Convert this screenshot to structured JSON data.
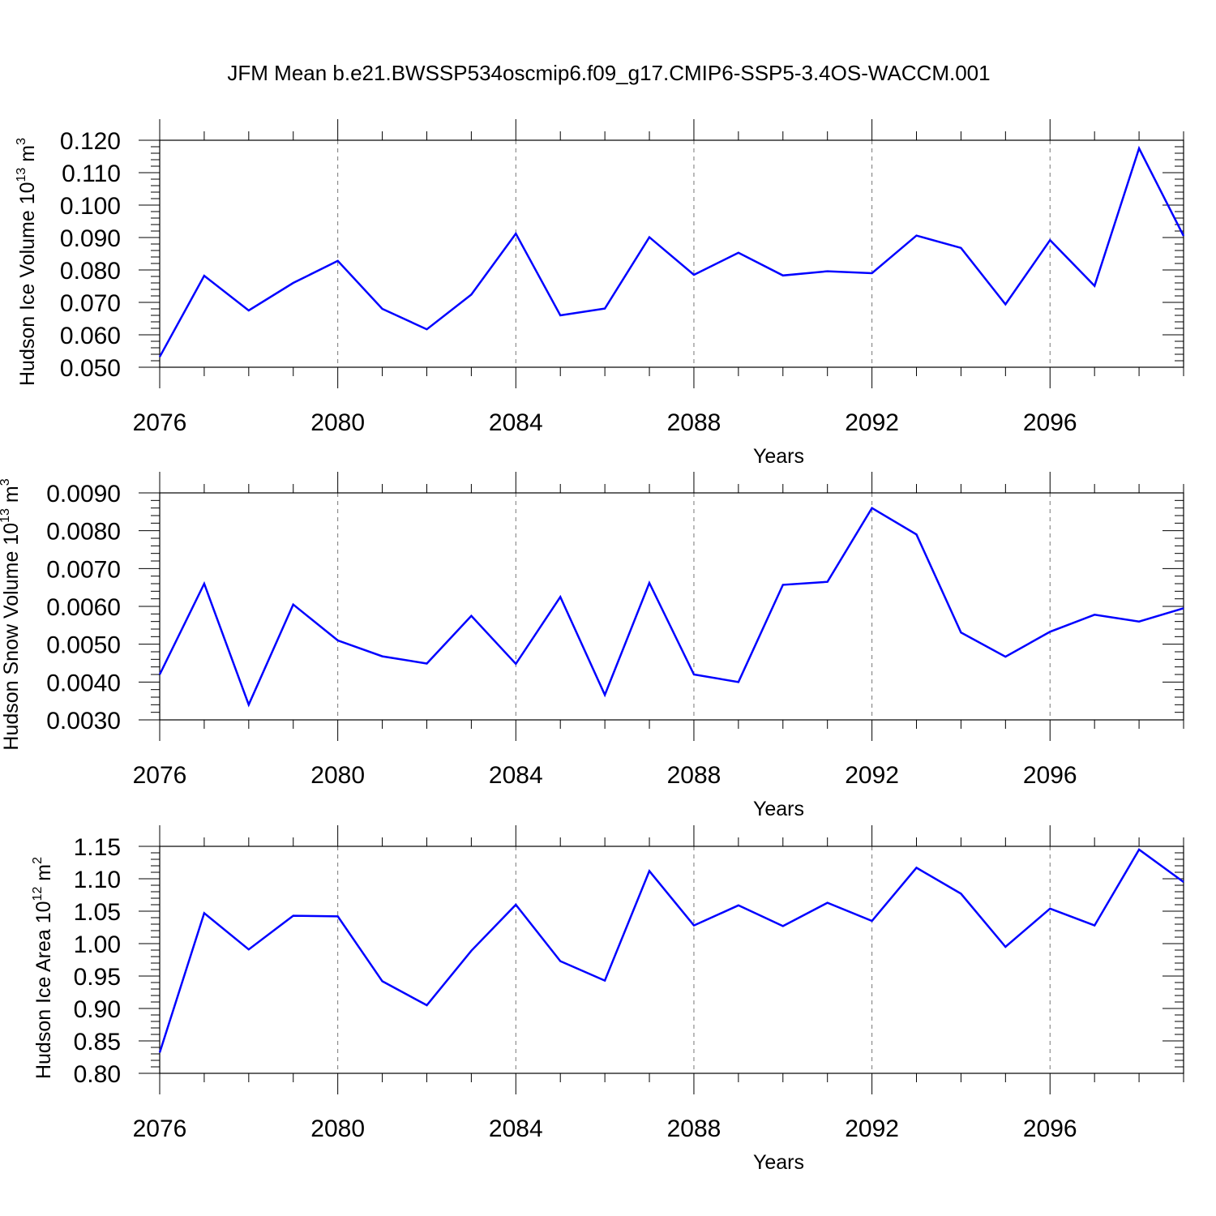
{
  "title": "JFM Mean b.e21.BWSSP534oscmip6.f09_g17.CMIP6-SSP5-3.4OS-WACCM.001",
  "line_color": "#0000ff",
  "chart_data": [
    {
      "type": "line",
      "title": "JFM Mean b.e21.BWSSP534oscmip6.f09_g17.CMIP6-SSP5-3.4OS-WACCM.001",
      "xlabel": "Years",
      "ylabel": {
        "base": "Hudson Ice Volume 10",
        "exp": "13",
        "unit": " m",
        "unit_exp": "3"
      },
      "xlim": [
        2076,
        2099
      ],
      "ylim": [
        0.05,
        0.12
      ],
      "x_ticks": [
        2076,
        2080,
        2084,
        2088,
        2092,
        2096
      ],
      "x_tick_labels": [
        "2076",
        "2080",
        "2084",
        "2088",
        "2092",
        "2096"
      ],
      "y_ticks": [
        0.05,
        0.06,
        0.07,
        0.08,
        0.09,
        0.1,
        0.11,
        0.12
      ],
      "y_tick_labels": [
        "0.050",
        "0.060",
        "0.070",
        "0.080",
        "0.090",
        "0.100",
        "0.110",
        "0.120"
      ],
      "y_minor_step": 0.002,
      "grid": "vertical dashed at major x ticks",
      "series": [
        {
          "name": "Hudson Ice Volume",
          "x": [
            2076,
            2077,
            2078,
            2079,
            2080,
            2081,
            2082,
            2083,
            2084,
            2085,
            2086,
            2087,
            2088,
            2089,
            2090,
            2091,
            2092,
            2093,
            2094,
            2095,
            2096,
            2097,
            2098,
            2099
          ],
          "values": [
            0.0532,
            0.0782,
            0.0675,
            0.076,
            0.0828,
            0.068,
            0.0617,
            0.0724,
            0.0912,
            0.066,
            0.0681,
            0.0901,
            0.0785,
            0.0853,
            0.0783,
            0.0796,
            0.079,
            0.0906,
            0.0868,
            0.0694,
            0.0892,
            0.0751,
            0.1175,
            0.0905
          ]
        }
      ]
    },
    {
      "type": "line",
      "xlabel": "Years",
      "ylabel": {
        "base": "Hudson Snow Volume 10",
        "exp": "13",
        "unit": " m",
        "unit_exp": "3"
      },
      "xlim": [
        2076,
        2099
      ],
      "ylim": [
        0.003,
        0.009
      ],
      "x_ticks": [
        2076,
        2080,
        2084,
        2088,
        2092,
        2096
      ],
      "x_tick_labels": [
        "2076",
        "2080",
        "2084",
        "2088",
        "2092",
        "2096"
      ],
      "y_ticks": [
        0.003,
        0.004,
        0.005,
        0.006,
        0.007,
        0.008,
        0.009
      ],
      "y_tick_labels": [
        "0.0030",
        "0.0040",
        "0.0050",
        "0.0060",
        "0.0070",
        "0.0080",
        "0.0090"
      ],
      "y_minor_step": 0.0002,
      "grid": "vertical dashed at major x ticks",
      "series": [
        {
          "name": "Hudson Snow Volume",
          "x": [
            2076,
            2077,
            2078,
            2079,
            2080,
            2081,
            2082,
            2083,
            2084,
            2085,
            2086,
            2087,
            2088,
            2089,
            2090,
            2091,
            2092,
            2093,
            2094,
            2095,
            2096,
            2097,
            2098,
            2099
          ],
          "values": [
            0.0042,
            0.0066,
            0.0034,
            0.00605,
            0.0051,
            0.00468,
            0.00449,
            0.00575,
            0.00448,
            0.00625,
            0.00366,
            0.00662,
            0.0042,
            0.004,
            0.00657,
            0.00665,
            0.0086,
            0.0079,
            0.00531,
            0.00467,
            0.00533,
            0.00578,
            0.0056,
            0.00595
          ]
        }
      ]
    },
    {
      "type": "line",
      "xlabel": "Years",
      "ylabel": {
        "base": "Hudson Ice Area 10",
        "exp": "12",
        "unit": " m",
        "unit_exp": "2"
      },
      "xlim": [
        2076,
        2099
      ],
      "ylim": [
        0.8,
        1.15
      ],
      "x_ticks": [
        2076,
        2080,
        2084,
        2088,
        2092,
        2096
      ],
      "x_tick_labels": [
        "2076",
        "2080",
        "2084",
        "2088",
        "2092",
        "2096"
      ],
      "y_ticks": [
        0.8,
        0.85,
        0.9,
        0.95,
        1.0,
        1.05,
        1.1,
        1.15
      ],
      "y_tick_labels": [
        "0.80",
        "0.85",
        "0.90",
        "0.95",
        "1.00",
        "1.05",
        "1.10",
        "1.15"
      ],
      "y_minor_step": 0.01,
      "grid": "vertical dashed at major x ticks",
      "series": [
        {
          "name": "Hudson Ice Area",
          "x": [
            2076,
            2077,
            2078,
            2079,
            2080,
            2081,
            2082,
            2083,
            2084,
            2085,
            2086,
            2087,
            2088,
            2089,
            2090,
            2091,
            2092,
            2093,
            2094,
            2095,
            2096,
            2097,
            2098,
            2099
          ],
          "values": [
            0.832,
            1.047,
            0.991,
            1.043,
            1.042,
            0.942,
            0.905,
            0.989,
            1.06,
            0.973,
            0.943,
            1.112,
            1.028,
            1.059,
            1.027,
            1.063,
            1.035,
            1.117,
            1.077,
            0.995,
            1.054,
            1.028,
            1.145,
            1.095
          ]
        }
      ]
    }
  ]
}
